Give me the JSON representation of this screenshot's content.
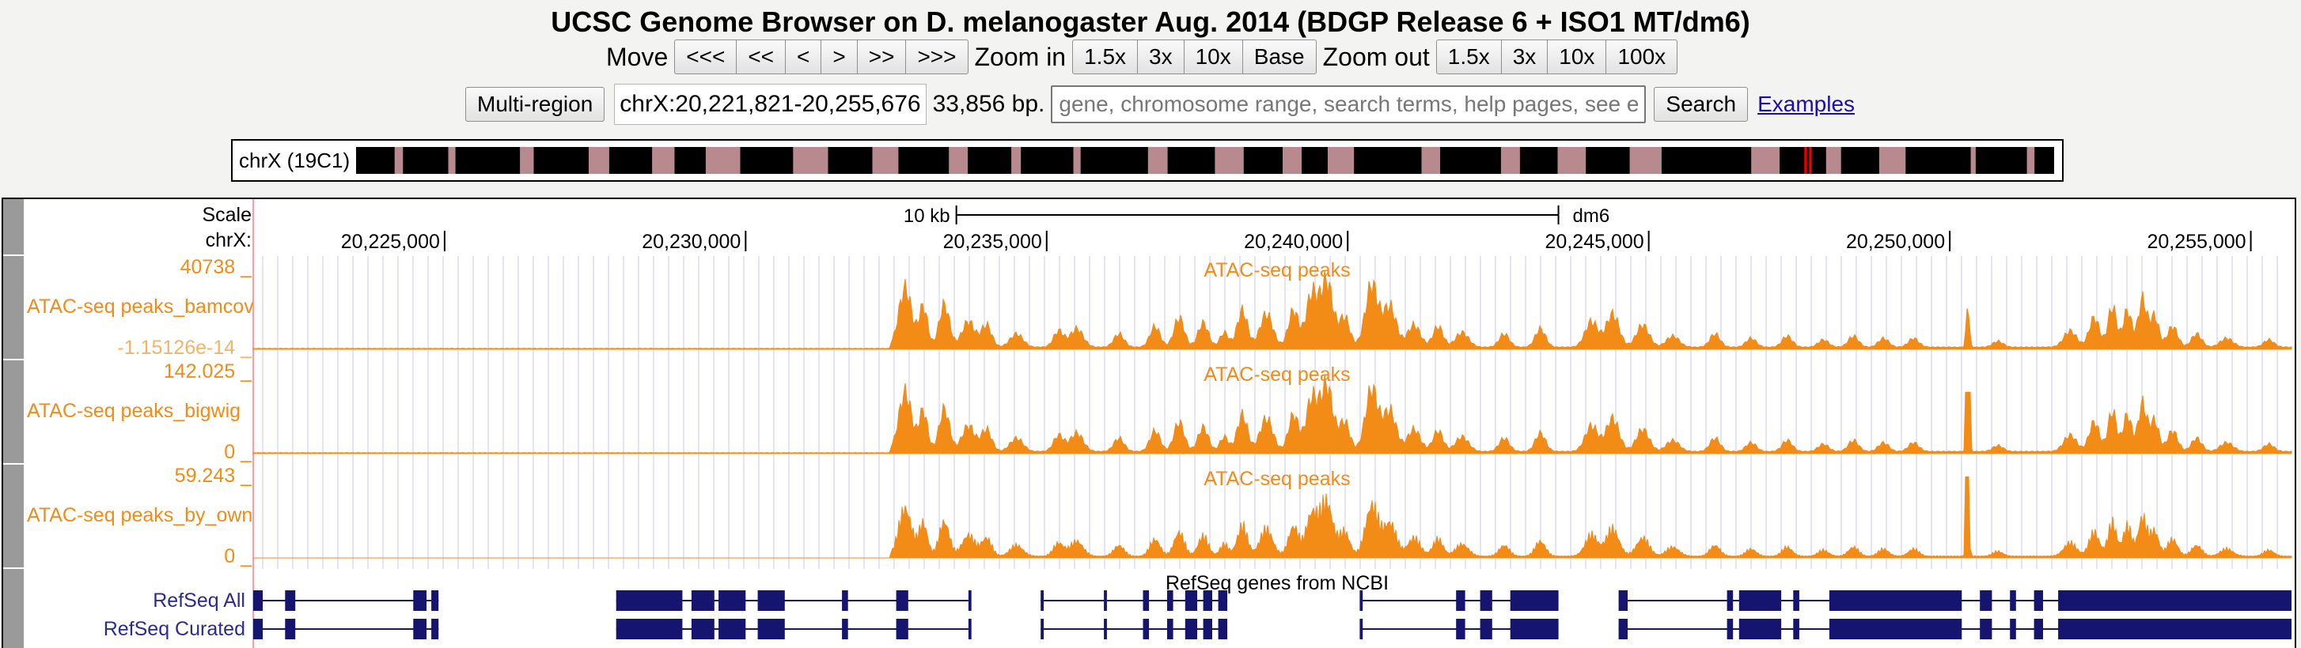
{
  "title": "UCSC Genome Browser on D. melanogaster Aug. 2014 (BDGP Release 6 + ISO1 MT/dm6)",
  "nav": {
    "move_label": "Move",
    "move_buttons": [
      "<<<",
      "<<",
      "<",
      ">",
      ">>",
      ">>>"
    ],
    "zoom_in_label": "Zoom in",
    "zoom_in_buttons": [
      "1.5x",
      "3x",
      "10x",
      "Base"
    ],
    "zoom_out_label": "Zoom out",
    "zoom_out_buttons": [
      "1.5x",
      "3x",
      "10x",
      "100x"
    ]
  },
  "position_bar": {
    "multi_region_label": "Multi-region",
    "position": "chrX:20,221,821-20,255,676",
    "size": "33,856 bp.",
    "search_placeholder": "gene, chromosome range, search terms, help pages, see examples",
    "search_label": "Search",
    "examples_label": "Examples"
  },
  "ideogram": {
    "label": "chrX (19C1)",
    "band_color_dark": "#000000",
    "band_color_light": "#b88a8f",
    "highlight_color": "#ee0000",
    "highlight_fraction": 0.855
  },
  "ruler": {
    "scale_label": "Scale",
    "chrom_label": "chrX:",
    "scale_bar_label": "10 kb",
    "assembly_label": "dm6",
    "ticks": [
      "20,225,000",
      "20,230,000",
      "20,235,000",
      "20,240,000",
      "20,245,000",
      "20,250,000",
      "20,255,000"
    ],
    "tick_values": [
      20225000,
      20230000,
      20235000,
      20240000,
      20245000,
      20250000,
      20255000
    ],
    "view_start": 20221821,
    "view_end": 20255676,
    "scale_bar_start": 20233500,
    "scale_bar_end": 20243500
  },
  "colors": {
    "signal": "#f28c16",
    "signal_label": "#f28c16",
    "gene": "#15156f",
    "gene_label": "#2c2c8c",
    "grid": "#c8c8f0"
  },
  "signal_tracks": [
    {
      "name": "ATAC-seq peaks_bamcoverage",
      "title": "ATAC-seq peaks",
      "max_label": "40738 _",
      "min_label": "-1.15126e-14 _"
    },
    {
      "name": "ATAC-seq peaks_bigwig",
      "title": "ATAC-seq peaks",
      "max_label": "142.025 _",
      "min_label": "0 _"
    },
    {
      "name": "ATAC-seq peaks_by_owner",
      "title": "ATAC-seq peaks",
      "max_label": "59.243 _",
      "min_label": "0 _"
    }
  ],
  "gene_track": {
    "title": "RefSeq genes from NCBI",
    "rows": [
      "RefSeq All",
      "RefSeq Curated"
    ]
  }
}
